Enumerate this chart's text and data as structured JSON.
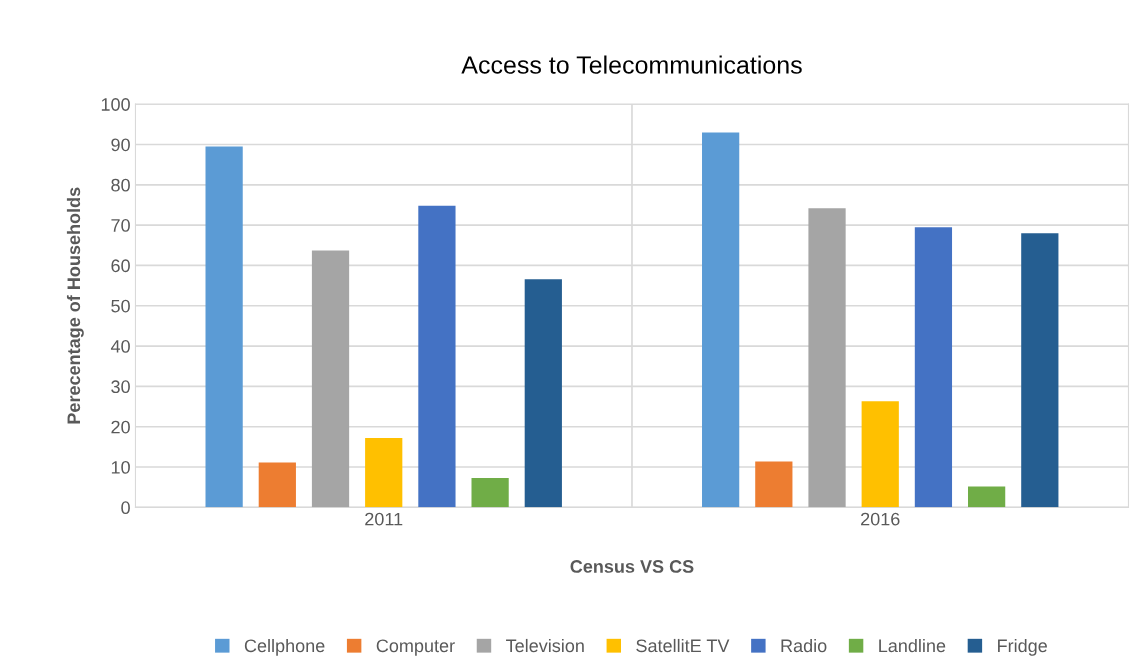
{
  "chart_data": {
    "type": "bar",
    "title": "Access to Telecommunications",
    "xlabel": "Census VS CS",
    "ylabel": "Perecentage of Households",
    "categories": [
      "2011",
      "2016"
    ],
    "series": [
      {
        "name": "Cellphone",
        "color": "#5b9bd5",
        "values": [
          89.5,
          93.0
        ]
      },
      {
        "name": "Computer",
        "color": "#ed7d31",
        "values": [
          11.1,
          11.4
        ]
      },
      {
        "name": "Television",
        "color": "#a5a5a5",
        "values": [
          63.7,
          74.2
        ]
      },
      {
        "name": "SatellitE TV",
        "color": "#ffc000",
        "values": [
          17.2,
          26.3
        ]
      },
      {
        "name": "Radio",
        "color": "#4472c4",
        "values": [
          74.8,
          69.5
        ]
      },
      {
        "name": "Landline",
        "color": "#70ad47",
        "values": [
          7.3,
          5.2
        ]
      },
      {
        "name": "Fridge",
        "color": "#255e91",
        "values": [
          56.6,
          68.0
        ]
      }
    ],
    "ylim": [
      0,
      100
    ],
    "yticks": [
      0,
      10,
      20,
      30,
      40,
      50,
      60,
      70,
      80,
      90,
      100
    ],
    "grid": true,
    "legend": "bottom"
  }
}
